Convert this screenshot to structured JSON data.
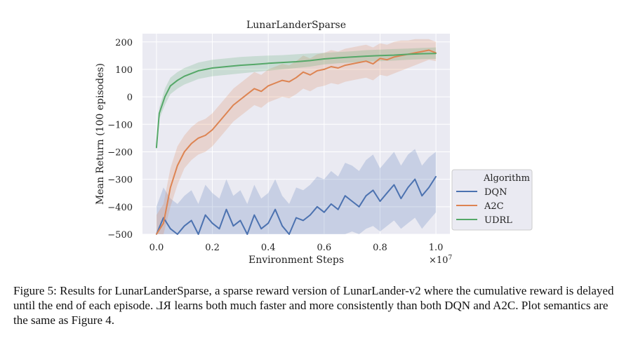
{
  "chart_data": {
    "type": "line",
    "title": "LunarLanderSparse",
    "xlabel": "Environment Steps",
    "ylabel": "Mean Return (100 episodes)",
    "x_multiplier_label": "×10",
    "x_multiplier_exponent": "7",
    "xlim": [
      -0.05,
      1.05
    ],
    "ylim": [
      -500,
      230
    ],
    "xticks": [
      0.0,
      0.2,
      0.4,
      0.6,
      0.8,
      1.0
    ],
    "xtick_labels": [
      "0.0",
      "0.2",
      "0.4",
      "0.6",
      "0.8",
      "1.0"
    ],
    "yticks": [
      200,
      100,
      0,
      -100,
      -200,
      -300,
      -400,
      -500
    ],
    "ytick_labels": [
      "200",
      "100",
      "0",
      "−100",
      "−200",
      "−300",
      "−400",
      "−500"
    ],
    "grid": true,
    "legend": {
      "title": "Algorithm",
      "location": "right-outside",
      "entries": [
        "DQN",
        "A2C",
        "UDRL"
      ]
    },
    "series": [
      {
        "name": "DQN",
        "color": "#4c72b0",
        "x": [
          0.0,
          0.025,
          0.05,
          0.075,
          0.1,
          0.125,
          0.15,
          0.175,
          0.2,
          0.225,
          0.25,
          0.275,
          0.3,
          0.325,
          0.35,
          0.375,
          0.4,
          0.425,
          0.45,
          0.475,
          0.5,
          0.525,
          0.55,
          0.575,
          0.6,
          0.625,
          0.65,
          0.675,
          0.7,
          0.725,
          0.75,
          0.775,
          0.8,
          0.825,
          0.85,
          0.875,
          0.9,
          0.925,
          0.95,
          0.975,
          1.0
        ],
        "values": [
          -500,
          -440,
          -480,
          -500,
          -470,
          -450,
          -500,
          -430,
          -460,
          -480,
          -410,
          -470,
          -450,
          -500,
          -430,
          -480,
          -460,
          -410,
          -470,
          -500,
          -440,
          -450,
          -430,
          -400,
          -420,
          -390,
          -410,
          -360,
          -380,
          -400,
          -360,
          -340,
          -380,
          -350,
          -320,
          -370,
          -330,
          -300,
          -360,
          -330,
          -290
        ],
        "band_low": [
          -500,
          -500,
          -500,
          -500,
          -500,
          -500,
          -500,
          -500,
          -500,
          -500,
          -500,
          -500,
          -500,
          -500,
          -500,
          -500,
          -500,
          -500,
          -500,
          -500,
          -500,
          -500,
          -500,
          -500,
          -500,
          -500,
          -500,
          -500,
          -490,
          -500,
          -480,
          -470,
          -490,
          -470,
          -450,
          -480,
          -460,
          -440,
          -480,
          -450,
          -420
        ],
        "band_high": [
          -400,
          -330,
          -370,
          -390,
          -360,
          -340,
          -390,
          -320,
          -350,
          -370,
          -300,
          -360,
          -340,
          -390,
          -320,
          -370,
          -350,
          -300,
          -360,
          -390,
          -330,
          -340,
          -320,
          -290,
          -300,
          -270,
          -290,
          -240,
          -250,
          -270,
          -230,
          -210,
          -260,
          -230,
          -200,
          -250,
          -210,
          -190,
          -250,
          -220,
          -200
        ]
      },
      {
        "name": "A2C",
        "color": "#dd8452",
        "x": [
          0.0,
          0.025,
          0.05,
          0.075,
          0.1,
          0.125,
          0.15,
          0.175,
          0.2,
          0.225,
          0.25,
          0.275,
          0.3,
          0.325,
          0.35,
          0.375,
          0.4,
          0.425,
          0.45,
          0.475,
          0.5,
          0.525,
          0.55,
          0.575,
          0.6,
          0.625,
          0.65,
          0.675,
          0.7,
          0.725,
          0.75,
          0.775,
          0.8,
          0.825,
          0.85,
          0.875,
          0.9,
          0.925,
          0.95,
          0.975,
          1.0
        ],
        "values": [
          -500,
          -460,
          -330,
          -250,
          -200,
          -170,
          -150,
          -140,
          -120,
          -90,
          -60,
          -30,
          -10,
          10,
          30,
          20,
          40,
          50,
          60,
          55,
          70,
          90,
          80,
          95,
          100,
          110,
          105,
          115,
          120,
          125,
          130,
          120,
          140,
          135,
          145,
          150,
          155,
          160,
          165,
          170,
          160
        ],
        "band_low": [
          -500,
          -500,
          -400,
          -320,
          -260,
          -230,
          -210,
          -200,
          -180,
          -150,
          -120,
          -90,
          -70,
          -50,
          -30,
          -40,
          -20,
          -10,
          0,
          -5,
          10,
          30,
          20,
          35,
          40,
          50,
          45,
          55,
          60,
          65,
          70,
          60,
          80,
          75,
          85,
          95,
          105,
          115,
          125,
          135,
          130
        ],
        "band_high": [
          -430,
          -390,
          -260,
          -180,
          -140,
          -110,
          -90,
          -80,
          -60,
          -30,
          0,
          30,
          50,
          70,
          90,
          80,
          100,
          110,
          120,
          115,
          130,
          150,
          140,
          155,
          160,
          170,
          165,
          175,
          180,
          185,
          190,
          180,
          195,
          190,
          200,
          205,
          205,
          210,
          210,
          210,
          200
        ]
      },
      {
        "name": "UDRL",
        "color": "#55a868",
        "x": [
          0.0,
          0.01,
          0.02,
          0.03,
          0.04,
          0.05,
          0.075,
          0.1,
          0.125,
          0.15,
          0.2,
          0.25,
          0.3,
          0.35,
          0.4,
          0.45,
          0.5,
          0.55,
          0.6,
          0.65,
          0.7,
          0.75,
          0.8,
          0.85,
          0.9,
          0.95,
          1.0
        ],
        "values": [
          -185,
          -60,
          -30,
          0,
          20,
          40,
          60,
          75,
          85,
          95,
          105,
          110,
          115,
          118,
          122,
          125,
          128,
          132,
          138,
          142,
          145,
          148,
          150,
          152,
          155,
          157,
          158
        ],
        "band_low": [
          -200,
          -80,
          -55,
          -30,
          -10,
          10,
          30,
          45,
          55,
          65,
          75,
          80,
          85,
          90,
          95,
          100,
          105,
          110,
          118,
          122,
          125,
          128,
          130,
          132,
          135,
          137,
          138
        ],
        "band_high": [
          -170,
          -40,
          -5,
          30,
          50,
          70,
          90,
          105,
          115,
          125,
          135,
          140,
          145,
          148,
          150,
          152,
          155,
          158,
          160,
          163,
          166,
          170,
          172,
          174,
          176,
          178,
          180
        ]
      }
    ]
  },
  "caption": {
    "text_before": "Figure 5: Results for LunarLanderSparse, a sparse reward version of LunarLander-v2 where the cumulative reward is delayed until the end of each episode. ",
    "rl_mark": "RL",
    "text_after": " learns both much faster and more consistently than both DQN and A2C. Plot semantics are the same as Figure 4."
  }
}
